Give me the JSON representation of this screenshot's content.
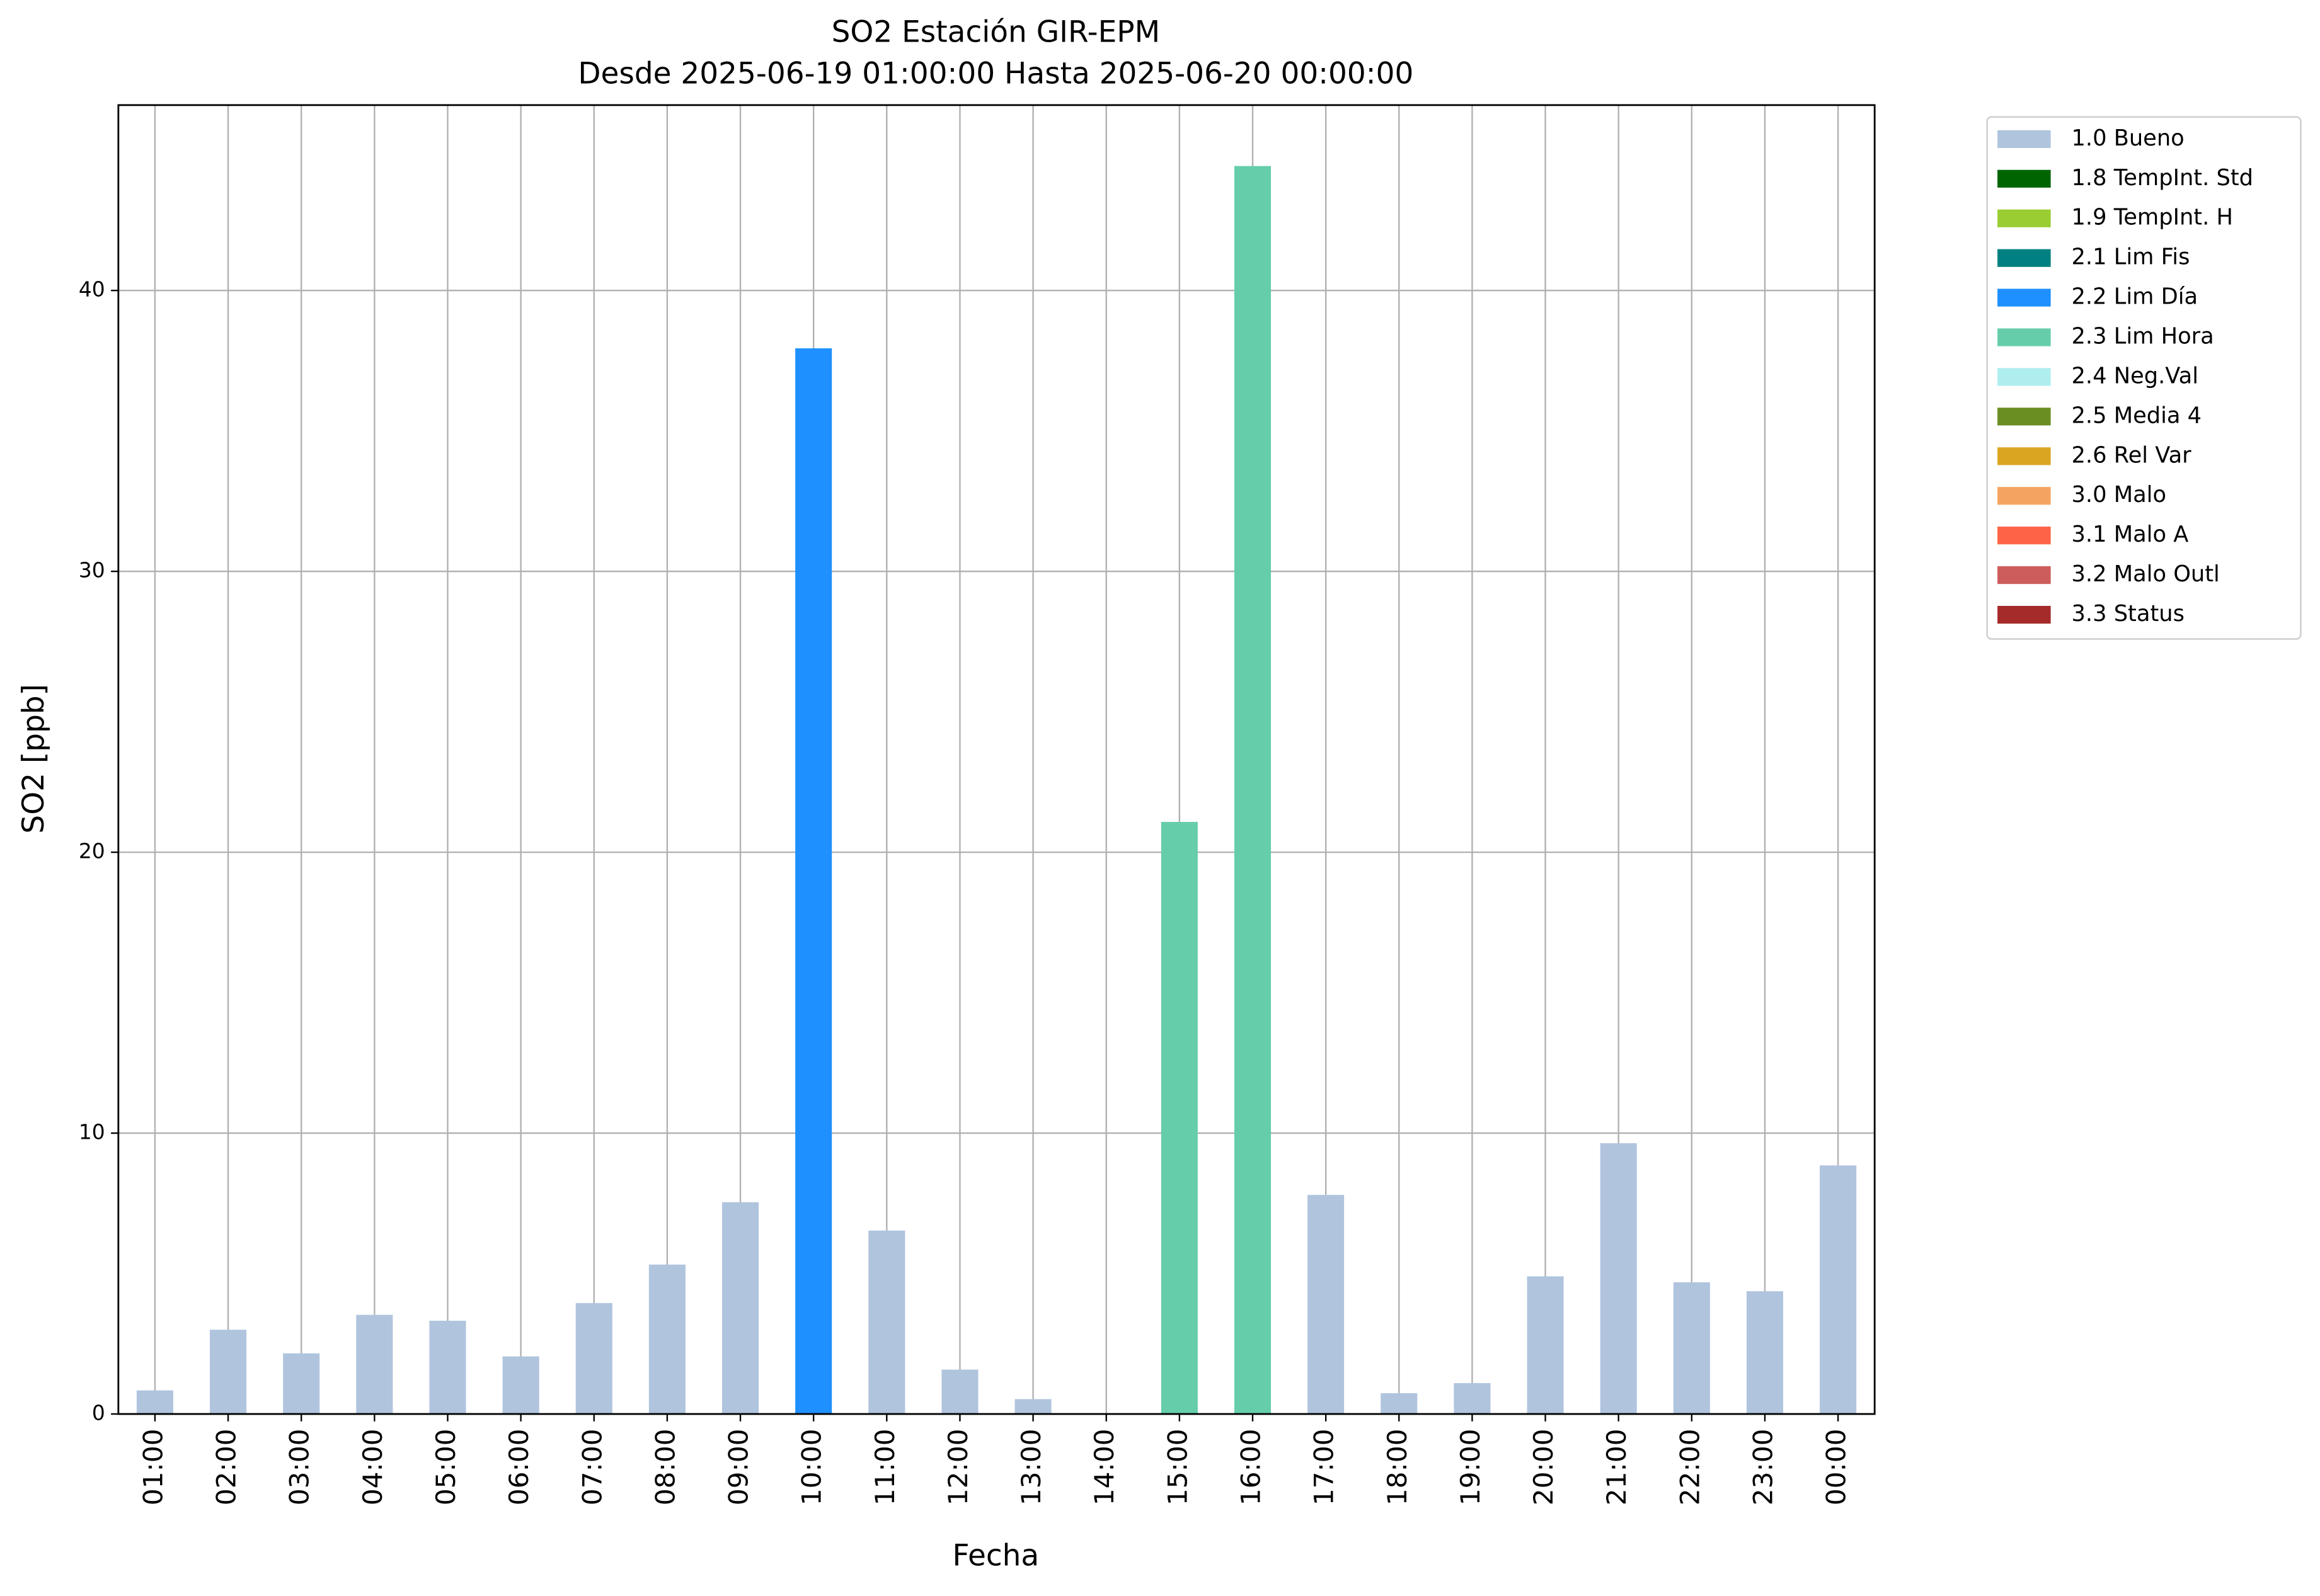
{
  "chart_data": {
    "type": "stacked_bar",
    "title": "SO2 Estación GIR-EPM",
    "subtitle": "Desde 2025-06-19 01:00:00 Hasta 2025-06-20 00:00:00",
    "x_label": "Fecha",
    "y_label": "SO2 [ppb]",
    "categories": [
      "01:00",
      "02:00",
      "03:00",
      "04:00",
      "05:00",
      "06:00",
      "07:00",
      "08:00",
      "09:00",
      "10:00",
      "11:00",
      "12:00",
      "13:00",
      "14:00",
      "15:00",
      "16:00",
      "17:00",
      "18:00",
      "19:00",
      "20:00",
      "21:00",
      "22:00",
      "23:00",
      "00:00"
    ],
    "series": [
      {
        "name": "1.0 Bueno",
        "color": "#b0c4de",
        "values": [
          0.84,
          3.0,
          2.16,
          3.53,
          3.32,
          2.05,
          3.95,
          5.32,
          7.54,
          null,
          6.53,
          1.58,
          0.53,
          null,
          null,
          null,
          7.8,
          0.74,
          1.1,
          4.9,
          9.64,
          4.69,
          4.37,
          8.85
        ]
      },
      {
        "name": "1.8 TempInt. Std",
        "color": "#006400",
        "values": [
          null,
          null,
          null,
          null,
          null,
          null,
          null,
          null,
          null,
          null,
          null,
          null,
          null,
          null,
          null,
          null,
          null,
          null,
          null,
          null,
          null,
          null,
          null,
          null
        ]
      },
      {
        "name": "1.9 TempInt. H",
        "color": "#9acd32",
        "values": [
          null,
          null,
          null,
          null,
          null,
          null,
          null,
          null,
          null,
          null,
          null,
          null,
          null,
          null,
          null,
          null,
          null,
          null,
          null,
          null,
          null,
          null,
          null,
          null
        ]
      },
      {
        "name": "2.1 Lim Fis",
        "color": "#008080",
        "values": [
          null,
          null,
          null,
          null,
          null,
          null,
          null,
          null,
          null,
          null,
          null,
          null,
          null,
          null,
          null,
          null,
          null,
          null,
          null,
          null,
          null,
          null,
          null,
          null
        ]
      },
      {
        "name": "2.2 Lim Día",
        "color": "#1e90ff",
        "values": [
          null,
          null,
          null,
          null,
          null,
          null,
          null,
          null,
          null,
          37.94,
          null,
          null,
          null,
          null,
          null,
          null,
          null,
          null,
          null,
          null,
          null,
          null,
          null,
          null
        ]
      },
      {
        "name": "2.3 Lim Hora",
        "color": "#66cdaa",
        "values": [
          null,
          null,
          null,
          null,
          null,
          null,
          null,
          null,
          null,
          null,
          null,
          null,
          null,
          null,
          21.08,
          44.43,
          null,
          null,
          null,
          null,
          null,
          null,
          null,
          null
        ]
      },
      {
        "name": "2.4 Neg.Val",
        "color": "#afeeee",
        "values": [
          null,
          null,
          null,
          null,
          null,
          null,
          null,
          null,
          null,
          null,
          null,
          null,
          null,
          null,
          null,
          null,
          null,
          null,
          null,
          null,
          null,
          null,
          null,
          null
        ]
      },
      {
        "name": "2.5 Media 4",
        "color": "#6b8e23",
        "values": [
          null,
          null,
          null,
          null,
          null,
          null,
          null,
          null,
          null,
          null,
          null,
          null,
          null,
          null,
          null,
          null,
          null,
          null,
          null,
          null,
          null,
          null,
          null,
          null
        ]
      },
      {
        "name": "2.6 Rel Var",
        "color": "#daa520",
        "values": [
          null,
          null,
          null,
          null,
          null,
          null,
          null,
          null,
          null,
          null,
          null,
          null,
          null,
          null,
          null,
          null,
          null,
          null,
          null,
          null,
          null,
          null,
          null,
          null
        ]
      },
      {
        "name": "3.0 Malo",
        "color": "#f4a460",
        "values": [
          null,
          null,
          null,
          null,
          null,
          null,
          null,
          null,
          null,
          null,
          null,
          null,
          null,
          null,
          null,
          null,
          null,
          null,
          null,
          null,
          null,
          null,
          null,
          null
        ]
      },
      {
        "name": "3.1 Malo A",
        "color": "#ff6347",
        "values": [
          null,
          null,
          null,
          null,
          null,
          null,
          null,
          null,
          null,
          null,
          null,
          null,
          null,
          null,
          null,
          null,
          null,
          null,
          null,
          null,
          null,
          null,
          null,
          null
        ]
      },
      {
        "name": "3.2 Malo Outl",
        "color": "#cd5c5c",
        "values": [
          null,
          null,
          null,
          null,
          null,
          null,
          null,
          null,
          null,
          null,
          null,
          null,
          null,
          null,
          null,
          null,
          null,
          null,
          null,
          null,
          null,
          null,
          null,
          null
        ]
      },
      {
        "name": "3.3 Status",
        "color": "#a52a2a",
        "values": [
          null,
          null,
          null,
          null,
          null,
          null,
          null,
          null,
          null,
          null,
          null,
          null,
          null,
          null,
          null,
          null,
          null,
          null,
          null,
          null,
          null,
          null,
          null,
          null
        ]
      }
    ],
    "ylim": [
      0,
      46.6
    ],
    "yticks": [
      0,
      10,
      20,
      30,
      40
    ],
    "grid": true,
    "legend": "outside-right"
  }
}
